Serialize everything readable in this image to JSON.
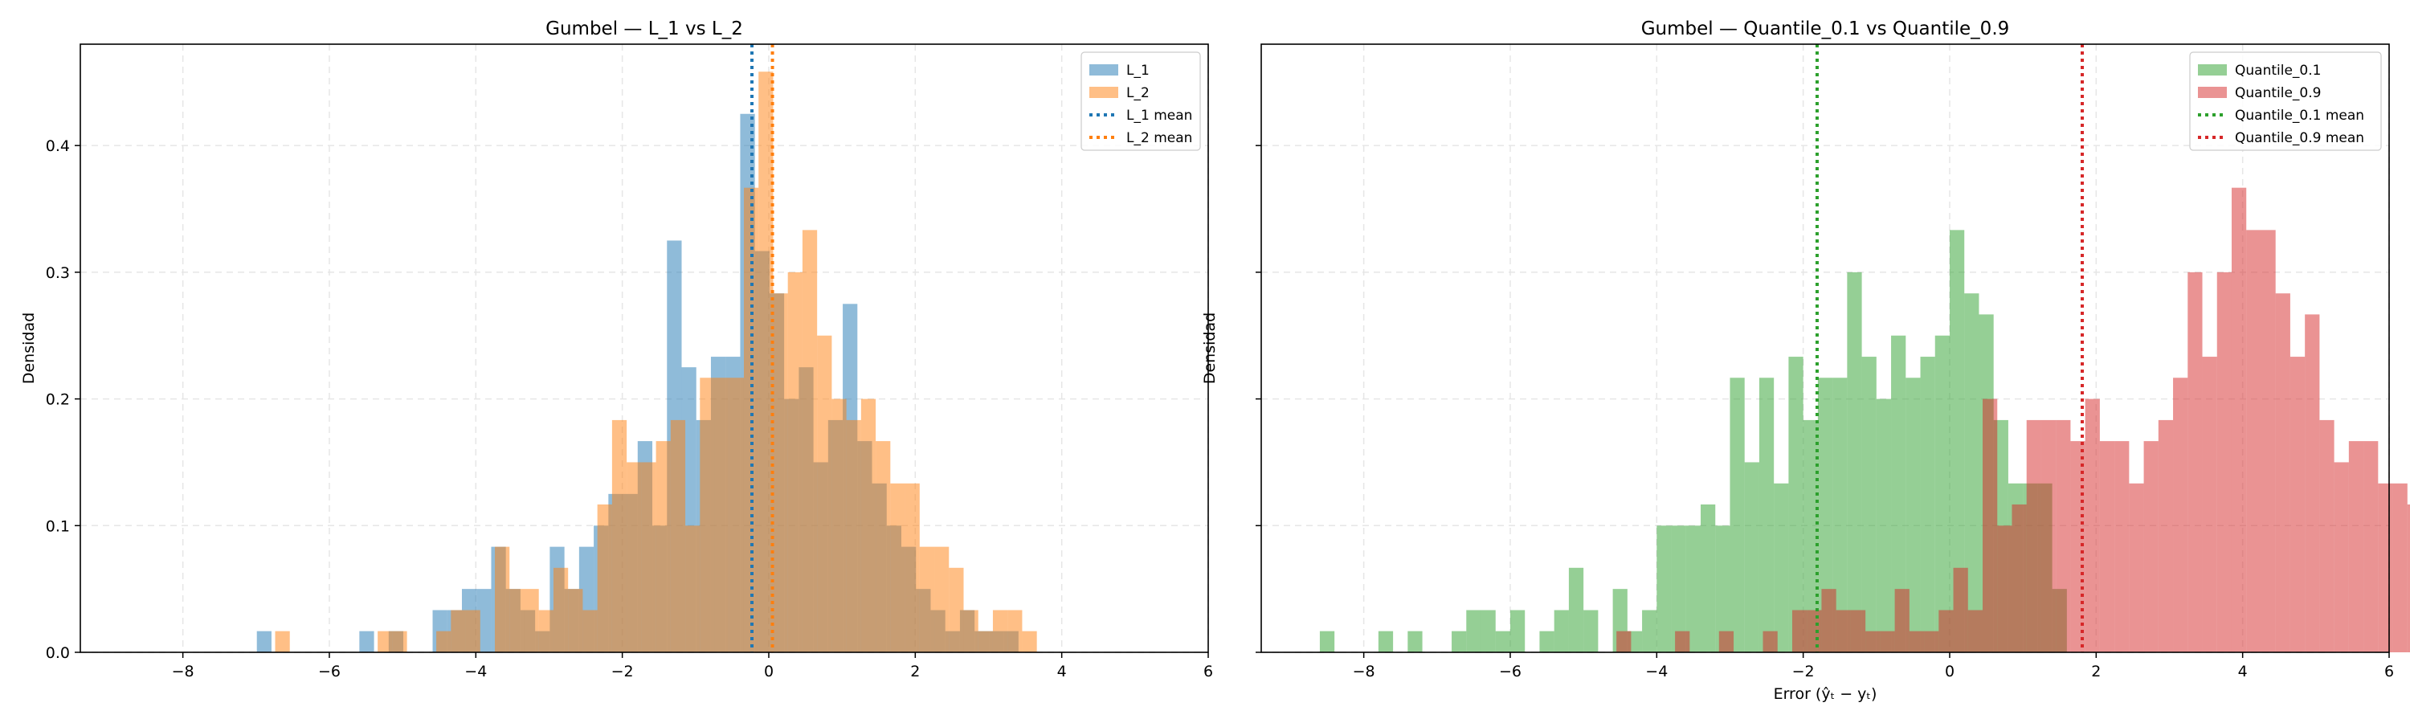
{
  "chart_data": [
    {
      "type": "histogram",
      "title": "Gumbel — L_1 vs L_2",
      "xlabel": "",
      "ylabel": "Densidad",
      "xlim": [
        -9.4,
        6.0
      ],
      "ylim": [
        0,
        0.48
      ],
      "xticks": [
        -8,
        -6,
        -4,
        -2,
        0,
        2,
        4,
        6
      ],
      "xtick_labels": [
        "−8",
        "−6",
        "−4",
        "−2",
        "0",
        "2",
        "4",
        "6"
      ],
      "yticks": [
        0.0,
        0.1,
        0.2,
        0.3,
        0.4
      ],
      "ytick_labels": [
        "0.0",
        "0.1",
        "0.2",
        "0.3",
        "0.4"
      ],
      "grid": true,
      "legend_position": "top-right",
      "series": [
        {
          "name": "L_1",
          "color": "#1f77b4",
          "x_start": -6.99,
          "bin_width": 0.2,
          "values": [
            0.0167,
            0,
            0,
            0,
            0,
            0,
            0,
            0.0167,
            0,
            0.0167,
            0,
            0,
            0.0333,
            0.0333,
            0.05,
            0.05,
            0.0833,
            0.05,
            0.0333,
            0.0167,
            0.0833,
            0.05,
            0.0833,
            0.1,
            0.125,
            0.125,
            0.1667,
            0.1,
            0.325,
            0.225,
            0.1833,
            0.2333,
            0.2333,
            0.425,
            0.3167,
            0.2833,
            0.2,
            0.225,
            0.15,
            0.1833,
            0.275,
            0.1667,
            0.1333,
            0.1,
            0.0833,
            0.05,
            0.0333,
            0.0167,
            0.0333,
            0.0167,
            0.0167,
            0.0167
          ]
        },
        {
          "name": "L_2",
          "color": "#ff7f0e",
          "x_start": -6.74,
          "bin_width": 0.2,
          "values": [
            0.0167,
            0,
            0,
            0,
            0,
            0,
            0,
            0.0167,
            0.0167,
            0,
            0,
            0.0167,
            0.0333,
            0.0333,
            0,
            0.0833,
            0.05,
            0.05,
            0.0333,
            0.0667,
            0.05,
            0.0333,
            0.1167,
            0.1833,
            0.15,
            0.15,
            0.1667,
            0.1833,
            0.1,
            0.2167,
            0.2167,
            0.2167,
            0.3667,
            0.4583,
            0.2833,
            0.3,
            0.3333,
            0.25,
            0.2,
            0.1833,
            0.2,
            0.1667,
            0.1333,
            0.1333,
            0.0833,
            0.0833,
            0.0667,
            0.0333,
            0.0167,
            0.0333,
            0.0333,
            0.0167
          ]
        },
        {
          "name": "L_1 mean",
          "type": "vline",
          "color": "#1f77b4",
          "x": -0.23
        },
        {
          "name": "L_2 mean",
          "type": "vline",
          "color": "#ff7f0e",
          "x": 0.05
        }
      ]
    },
    {
      "type": "histogram",
      "title": "Gumbel — Quantile_0.1 vs Quantile_0.9",
      "xlabel": "Error (ŷₜ − yₜ)",
      "ylabel": "Densidad",
      "xlim": [
        -9.4,
        6.0
      ],
      "ylim": [
        0,
        0.48
      ],
      "xticks": [
        -8,
        -6,
        -4,
        -2,
        0,
        2,
        4,
        6
      ],
      "xtick_labels": [
        "−8",
        "−6",
        "−4",
        "−2",
        "0",
        "2",
        "4",
        "6"
      ],
      "yticks": [
        0.0,
        0.1,
        0.2,
        0.3,
        0.4
      ],
      "ytick_labels": [
        "",
        "",
        "",
        "",
        ""
      ],
      "grid": true,
      "legend_position": "top-right",
      "series": [
        {
          "name": "Quantile_0.1",
          "color": "#2ca02c",
          "x_start": -8.6,
          "bin_width": 0.2,
          "values": [
            0.0167,
            0,
            0,
            0,
            0.0167,
            0,
            0.0167,
            0,
            0,
            0.0167,
            0.0333,
            0.0333,
            0.0167,
            0.0333,
            0,
            0.0167,
            0.0333,
            0.0667,
            0.0333,
            0,
            0.05,
            0.0167,
            0.0333,
            0.1,
            0.1,
            0.1,
            0.1167,
            0.1,
            0.2167,
            0.15,
            0.2167,
            0.1333,
            0.2333,
            0.1833,
            0.2167,
            0.2167,
            0.3,
            0.2333,
            0.2,
            0.25,
            0.2167,
            0.2333,
            0.25,
            0.3333,
            0.2833,
            0.2667,
            0.1833,
            0.1333,
            0.1333,
            0.1333,
            0.05
          ]
        },
        {
          "name": "Quantile_0.9",
          "color": "#d62728",
          "x_start": -4.55,
          "bin_width": 0.2,
          "values": [
            0.0167,
            0,
            0,
            0,
            0.0167,
            0,
            0,
            0.0167,
            0,
            0,
            0.0167,
            0,
            0.0333,
            0.0333,
            0.05,
            0.0333,
            0.0333,
            0.0167,
            0.0167,
            0.05,
            0.0167,
            0.0167,
            0.0333,
            0.0667,
            0.0333,
            0.2,
            0.1,
            0.1167,
            0.1833,
            0.1833,
            0.1833,
            0.1667,
            0.2,
            0.1667,
            0.1667,
            0.1333,
            0.1667,
            0.1833,
            0.2167,
            0.3,
            0.2333,
            0.3,
            0.3667,
            0.3333,
            0.3333,
            0.2833,
            0.2333,
            0.2667,
            0.1833,
            0.15,
            0.1667,
            0.1667,
            0.1333,
            0.1333,
            0.1167,
            0.0833,
            0.0833,
            0.05,
            0.0167,
            0.05,
            0.0333,
            0.0333,
            0.0333,
            0,
            0,
            0.0333
          ]
        },
        {
          "name": "Quantile_0.1 mean",
          "type": "vline",
          "color": "#2ca02c",
          "x": -1.81
        },
        {
          "name": "Quantile_0.9 mean",
          "type": "vline",
          "color": "#d62728",
          "x": 1.81
        }
      ]
    }
  ]
}
